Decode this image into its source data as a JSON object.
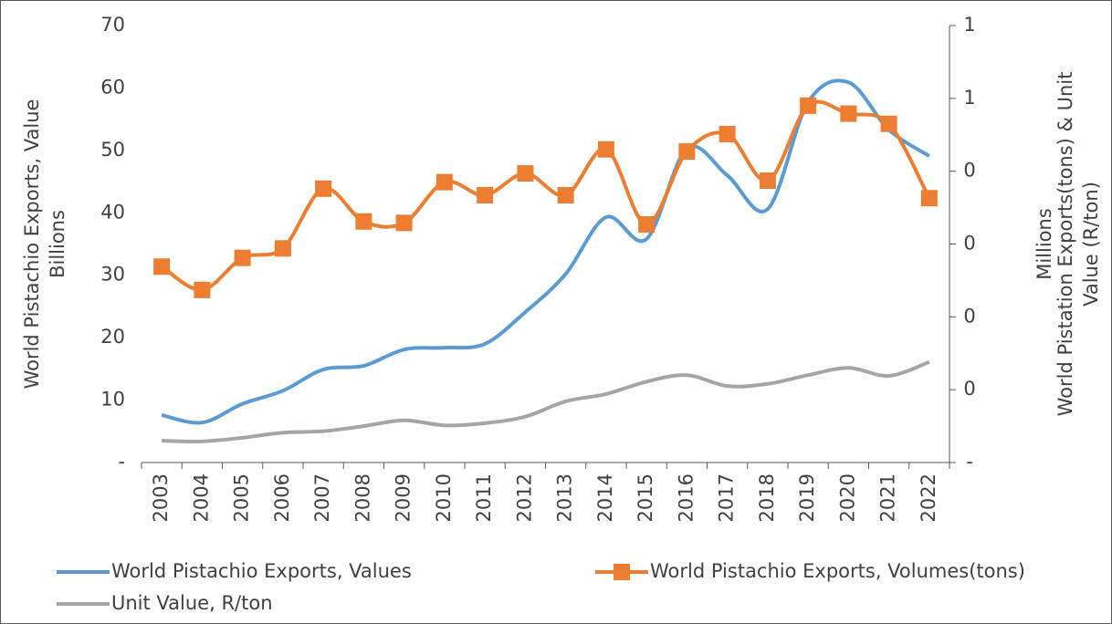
{
  "chart_data": {
    "type": "line",
    "y_label": "World Pistachio Exports, Value",
    "y_unit": "Billions",
    "y2_unit": "Millions",
    "y2_label_lines": [
      "World Pistation Exports(tons) & Unit",
      "Value (R/ton)"
    ],
    "categories": [
      "2003",
      "2004",
      "2005",
      "2006",
      "2007",
      "2008",
      "2009",
      "2010",
      "2011",
      "2012",
      "2013",
      "2014",
      "2015",
      "2016",
      "2017",
      "2018",
      "2019",
      "2020",
      "2021",
      "2022"
    ],
    "series": [
      {
        "name": "World Pistachio Exports, Values",
        "color": "#5b9bd5",
        "axis": "y",
        "marker": null,
        "values": [
          7.6,
          6.4,
          9.4,
          11.5,
          14.9,
          15.5,
          18.1,
          18.4,
          19.0,
          24.1,
          30.2,
          39.3,
          35.8,
          50.3,
          46.0,
          40.6,
          57.7,
          60.9,
          53.3,
          49.1
        ]
      },
      {
        "name": "World Pistachio Exports, Volumes(tons)",
        "color": "#ed7d31",
        "axis": "y2",
        "marker": "square",
        "values": [
          0.269,
          0.237,
          0.281,
          0.294,
          0.376,
          0.331,
          0.329,
          0.385,
          0.367,
          0.397,
          0.367,
          0.43,
          0.327,
          0.427,
          0.451,
          0.387,
          0.49,
          0.479,
          0.465,
          0.363
        ]
      },
      {
        "name": "Unit Value, R/ton",
        "color": "#a5a5a5",
        "axis": "y2",
        "marker": null,
        "values": [
          0.03,
          0.029,
          0.034,
          0.041,
          0.043,
          0.05,
          0.058,
          0.051,
          0.054,
          0.063,
          0.084,
          0.094,
          0.111,
          0.12,
          0.105,
          0.108,
          0.12,
          0.13,
          0.119,
          0.138
        ]
      }
    ],
    "ylim": [
      0,
      70
    ],
    "yticks": [
      {
        "value": 0,
        "label": "-"
      },
      10,
      20,
      30,
      40,
      50,
      60,
      70
    ],
    "y2lim": [
      0,
      0.6
    ],
    "y2ticks": [
      {
        "value": 0,
        "label": "-"
      },
      {
        "value": 0.1,
        "label": "0"
      },
      {
        "value": 0.2,
        "label": "0"
      },
      {
        "value": 0.3,
        "label": "0"
      },
      {
        "value": 0.4,
        "label": "0"
      },
      {
        "value": 0.5,
        "label": "1"
      },
      {
        "value": 0.6,
        "label": "1"
      }
    ],
    "grid": false,
    "smooth": true,
    "legend": "bottom"
  }
}
